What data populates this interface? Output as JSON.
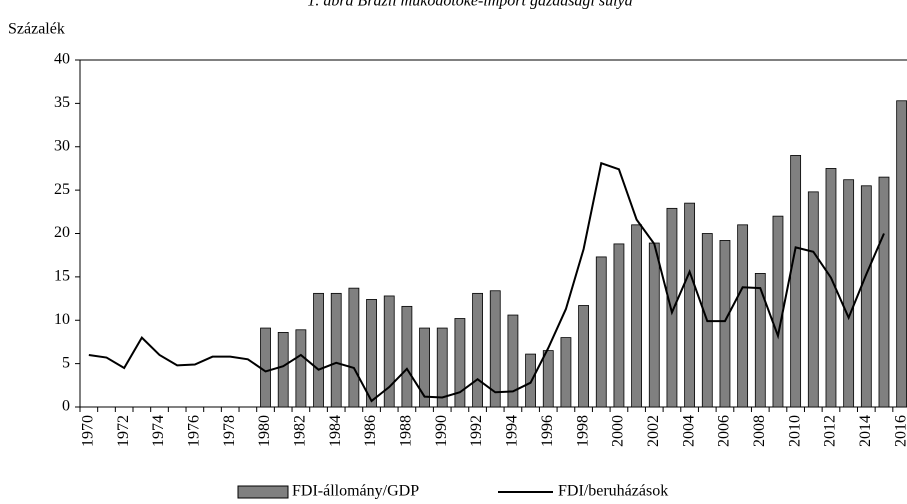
{
  "chart_data": {
    "type": "bar_line",
    "title": "1. ábra Brazil működőtőke-import gazdasági súlya",
    "y_label": "Százalék",
    "categories": [
      "1970",
      null,
      "1972",
      null,
      "1974",
      null,
      "1976",
      null,
      "1978",
      null,
      "1980",
      null,
      "1982",
      null,
      "1984",
      null,
      "1986",
      null,
      "1988",
      null,
      "1990",
      null,
      "1992",
      null,
      "1994",
      null,
      "1996",
      null,
      "1998",
      null,
      "2000",
      null,
      "2002",
      null,
      "2004",
      null,
      "2006",
      null,
      "2008",
      null,
      "2010",
      null,
      "2012",
      null,
      "2014",
      null,
      "2016"
    ],
    "series": [
      {
        "name": "FDI-állomány/GDP",
        "type": "bar",
        "color": "#808080",
        "values": [
          null,
          null,
          null,
          null,
          null,
          null,
          null,
          null,
          null,
          null,
          9.1,
          8.6,
          8.9,
          13.1,
          13.1,
          13.7,
          12.4,
          12.8,
          11.6,
          9.1,
          9.1,
          10.2,
          13.1,
          13.4,
          10.6,
          6.1,
          6.5,
          8.0,
          11.7,
          17.3,
          18.8,
          21.0,
          18.9,
          22.9,
          23.5,
          20.0,
          19.2,
          21.0,
          15.4,
          22.0,
          29.0,
          24.8,
          27.5,
          26.2,
          25.5,
          26.5,
          35.3
        ]
      },
      {
        "name": "FDI/beruházások",
        "type": "line",
        "color": "#000000",
        "values": [
          6.0,
          5.7,
          4.5,
          8.0,
          6.0,
          4.8,
          4.9,
          5.8,
          5.8,
          5.5,
          4.1,
          4.7,
          6.0,
          4.3,
          5.1,
          4.5,
          0.7,
          2.3,
          4.4,
          1.2,
          1.1,
          1.7,
          3.2,
          1.7,
          1.8,
          2.8,
          6.8,
          11.3,
          18.2,
          28.1,
          27.4,
          21.6,
          18.8,
          10.9,
          15.6,
          9.9,
          9.9,
          13.8,
          13.7,
          8.2,
          18.4,
          17.9,
          14.9,
          10.3,
          15.3,
          20.0,
          null
        ]
      }
    ],
    "ylim": [
      0,
      40
    ],
    "yticks": [
      0,
      5,
      10,
      15,
      20,
      25,
      30,
      35,
      40
    ],
    "grid": false
  }
}
